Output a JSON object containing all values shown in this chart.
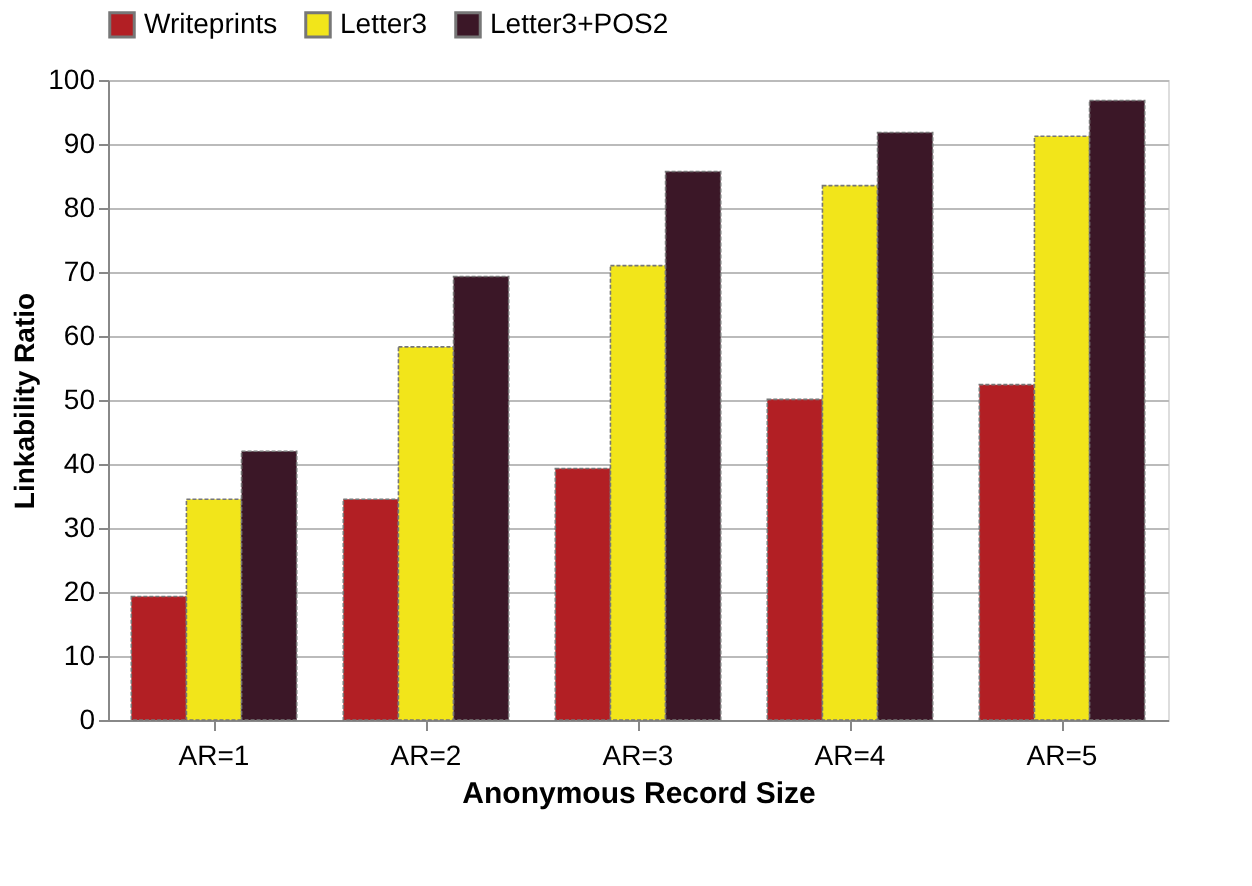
{
  "chart_data": {
    "type": "bar",
    "xlabel": "Anonymous Record Size",
    "ylabel": "Linkability Ratio",
    "categories": [
      "AR=1",
      "AR=2",
      "AR=3",
      "AR=4",
      "AR=5"
    ],
    "series": [
      {
        "name": "Writeprints",
        "color": "#b21f24",
        "values": [
          19.3,
          34.5,
          39.3,
          50.1,
          52.4
        ]
      },
      {
        "name": "Letter3",
        "color": "#f2e51a",
        "values": [
          34.5,
          58.3,
          71,
          83.5,
          91.2
        ]
      },
      {
        "name": "Letter3+POS2",
        "color": "#3b1727",
        "values": [
          42,
          69.3,
          85.7,
          91.8,
          96.8
        ]
      }
    ],
    "ylim": [
      0,
      100
    ],
    "yticks": [
      0,
      10,
      20,
      30,
      40,
      50,
      60,
      70,
      80,
      90,
      100
    ],
    "grid": "y",
    "legend": "top"
  }
}
